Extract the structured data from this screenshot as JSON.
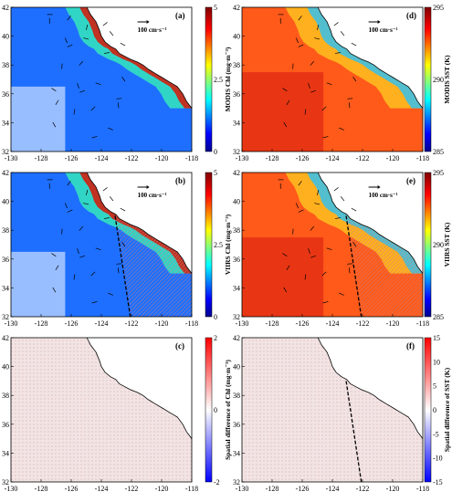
{
  "x_ticks": [
    "-130",
    "-128",
    "-126",
    "-124",
    "-122",
    "-120",
    "-118"
  ],
  "y_ticks": [
    "42",
    "40",
    "38",
    "36",
    "34",
    "32"
  ],
  "scale_label": "100 cm·s⁻¹",
  "panels": [
    {
      "id": "a",
      "label": "(a)",
      "field": "chl",
      "colorbar_title": "MODIS Chl (mg·m⁻³)",
      "cb_ticks": [
        "5",
        "2.5",
        "0"
      ],
      "colormap": "jet",
      "currents": true,
      "swath_line": false
    },
    {
      "id": "b",
      "label": "(b)",
      "field": "chl",
      "colorbar_title": "VIIRS Chl (mg·m⁻³)",
      "cb_ticks": [
        "5",
        "2.5",
        "0"
      ],
      "colormap": "jet",
      "currents": true,
      "swath_line": true
    },
    {
      "id": "c",
      "label": "(c)",
      "field": "chl_diff",
      "colorbar_title": "Spatial difference of Chl (mg·m⁻³)",
      "cb_ticks": [
        "2",
        "0",
        "-2"
      ],
      "colormap": "bwr",
      "currents": false,
      "swath_line": false
    },
    {
      "id": "d",
      "label": "(d)",
      "field": "sst",
      "colorbar_title": "MODIS SST (K)",
      "cb_ticks": [
        "295",
        "290",
        "285"
      ],
      "colormap": "jet",
      "currents": true,
      "swath_line": false
    },
    {
      "id": "e",
      "label": "(e)",
      "field": "sst",
      "colorbar_title": "VIIRS SST (K)",
      "cb_ticks": [
        "295",
        "290",
        "285"
      ],
      "colormap": "jet",
      "currents": true,
      "swath_line": true
    },
    {
      "id": "f",
      "label": "(f)",
      "field": "sst_diff",
      "colorbar_title": "Spatial difference of SST (K)",
      "cb_ticks": [
        "15",
        "10",
        "5",
        "0",
        "-5",
        "-10",
        "-15"
      ],
      "colormap": "bwr",
      "currents": false,
      "swath_line": true
    }
  ],
  "colors": {
    "land": "#ffffff",
    "coast": "#000000",
    "swath": "#000000"
  }
}
